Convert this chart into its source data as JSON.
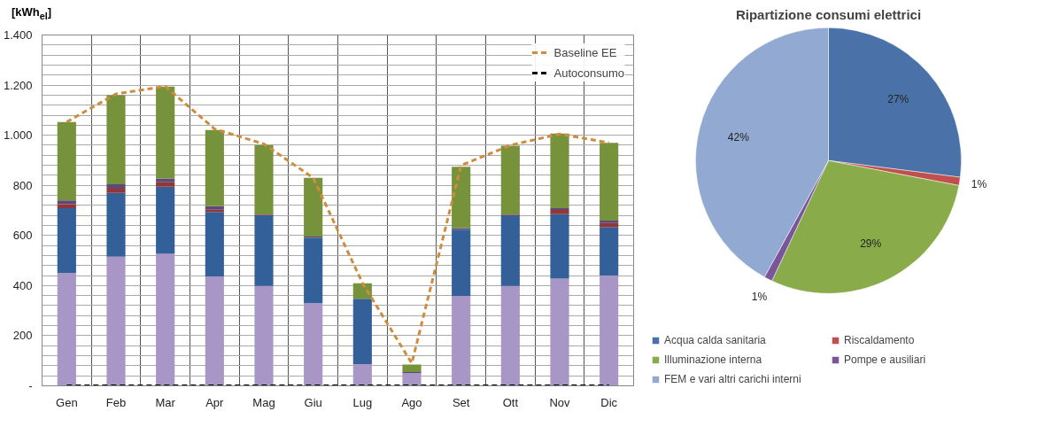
{
  "chart_data": [
    {
      "type": "bar",
      "stacked": true,
      "ylabel": "[kWh$_{el}$]",
      "categories": [
        "Gen",
        "Feb",
        "Mar",
        "Apr",
        "Mag",
        "Giu",
        "Lug",
        "Ago",
        "Set",
        "Ott",
        "Nov",
        "Dic"
      ],
      "series": [
        {
          "color": "#a796c6",
          "values": [
            450,
            515,
            527,
            437,
            399,
            330,
            87,
            50,
            359,
            399,
            428,
            440
          ]
        },
        {
          "color": "#34609a",
          "values": [
            259,
            255,
            268,
            257,
            278,
            260,
            260,
            0,
            264,
            278,
            257,
            194
          ]
        },
        {
          "color": "#943634",
          "values": [
            16,
            17,
            17,
            9,
            0,
            0,
            0,
            0,
            0,
            0,
            17,
            16
          ]
        },
        {
          "color": "#60497a",
          "values": [
            15,
            17,
            15,
            14,
            6,
            6,
            0,
            5,
            6,
            6,
            7,
            9
          ]
        },
        {
          "color": "#76933c",
          "values": [
            313,
            356,
            367,
            304,
            278,
            234,
            62,
            30,
            245,
            275,
            298,
            311
          ]
        },
        {
          "type": "line",
          "name": "Baseline EE",
          "color": "#d08b3c",
          "line_style": "dashed",
          "values": [
            1053,
            1165,
            1195,
            1025,
            965,
            830,
            410,
            90,
            880,
            960,
            1005,
            970
          ]
        },
        {
          "type": "line",
          "name": "Autoconsumo",
          "color": "#000000",
          "line_style": "dashed",
          "values": [
            0,
            0,
            0,
            0,
            0,
            0,
            0,
            0,
            0,
            0,
            0,
            0
          ]
        }
      ],
      "ylim": [
        0,
        1400
      ],
      "yticks": [
        {
          "value": 0,
          "label": "-"
        },
        {
          "value": 40,
          "label": null
        },
        {
          "value": 80,
          "label": null
        },
        {
          "value": 120,
          "label": null
        },
        {
          "value": 160,
          "label": null
        },
        200,
        {
          "value": 240,
          "label": null
        },
        {
          "value": 280,
          "label": null
        },
        {
          "value": 320,
          "label": null
        },
        {
          "value": 360,
          "label": null
        },
        400,
        {
          "value": 440,
          "label": null
        },
        {
          "value": 480,
          "label": null
        },
        {
          "value": 520,
          "label": null
        },
        {
          "value": 560,
          "label": null
        },
        600,
        {
          "value": 640,
          "label": null
        },
        {
          "value": 680,
          "label": null
        },
        {
          "value": 720,
          "label": null
        },
        {
          "value": 760,
          "label": null
        },
        800,
        {
          "value": 840,
          "label": null
        },
        {
          "value": 880,
          "label": null
        },
        {
          "value": 920,
          "label": null
        },
        {
          "value": 960,
          "label": null
        },
        {
          "value": 1000,
          "label": "1.000"
        },
        {
          "value": 1040,
          "label": null
        },
        {
          "value": 1080,
          "label": null
        },
        {
          "value": 1120,
          "label": null
        },
        {
          "value": 1160,
          "label": null
        },
        {
          "value": 1200,
          "label": "1.200"
        },
        {
          "value": 1240,
          "label": null
        },
        {
          "value": 1280,
          "label": null
        },
        {
          "value": 1320,
          "label": null
        },
        {
          "value": 1360,
          "label": null
        },
        {
          "value": 1400,
          "label": "1.400"
        }
      ],
      "grid": true,
      "legend": "top right"
    },
    {
      "type": "pie",
      "title": "Ripartizione consumi elettrici",
      "categories": [
        "Acqua calda sanitaria",
        "Riscaldamento",
        "Illuminazione interna",
        "Pompe e ausiliari",
        "FEM e vari altri carichi interni"
      ],
      "values": [
        27,
        1,
        29,
        1,
        42
      ],
      "colors": [
        "#4a72a8",
        "#c0504d",
        "#8aab4a",
        "#7a559a",
        "#92a9d1"
      ],
      "value_labels": [
        "27%",
        "1%",
        "29%",
        "1%",
        "42%"
      ],
      "legend": "bottom"
    }
  ]
}
